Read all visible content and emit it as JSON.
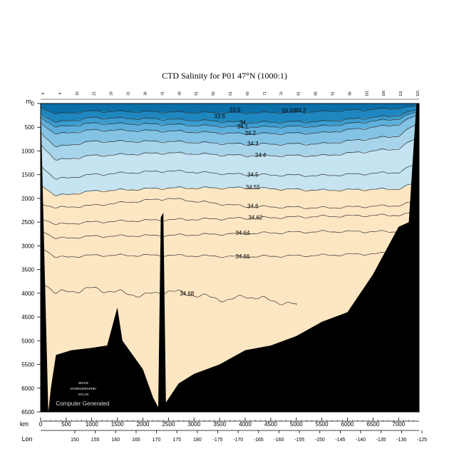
{
  "chart_data": {
    "type": "area",
    "title": "CTD Salinity for P01 47°N (1000:1)",
    "depth_axis": {
      "label": "m",
      "range": [
        0,
        6500
      ],
      "ticks": [
        0,
        500,
        1000,
        1500,
        2000,
        2500,
        3000,
        3500,
        4000,
        4500,
        5000,
        5500,
        6000,
        6500
      ]
    },
    "distance_axis": {
      "label": "km",
      "range": [
        0,
        7400
      ],
      "ticks": [
        0,
        500,
        1000,
        1500,
        2000,
        2500,
        3000,
        3500,
        4000,
        4500,
        5000,
        5500,
        6000,
        6500,
        7000
      ]
    },
    "longitude_axis": {
      "label": "Lon",
      "labels": [
        "150",
        "155",
        "160",
        "165",
        "170",
        "175",
        "180",
        "-175",
        "-170",
        "-165",
        "-160",
        "-155",
        "-150",
        "-145",
        "-140",
        "-135",
        "-130",
        "-125"
      ]
    },
    "station_labels": [
      "6",
      "9",
      "16",
      "21",
      "26",
      "31",
      "36",
      "41",
      "46",
      "51",
      "56",
      "61",
      "66",
      "71",
      "76",
      "81",
      "86",
      "91",
      "96",
      "101",
      "106",
      "111",
      "115"
    ],
    "contour_labels": [
      {
        "label": "33.5",
        "km": 3800,
        "depth": 130
      },
      {
        "label": "33.33",
        "km": 4850,
        "depth": 150
      },
      {
        "label": "33.2",
        "km": 5080,
        "depth": 140
      },
      {
        "label": "33.6",
        "km": 3500,
        "depth": 260
      },
      {
        "label": "34",
        "km": 3950,
        "depth": 400
      },
      {
        "label": "34.1",
        "km": 3950,
        "depth": 480
      },
      {
        "label": "34.2",
        "km": 4100,
        "depth": 620
      },
      {
        "label": "34.3",
        "km": 4150,
        "depth": 840
      },
      {
        "label": "34.4",
        "km": 4300,
        "depth": 1080
      },
      {
        "label": "34.5",
        "km": 4150,
        "depth": 1500
      },
      {
        "label": "34.55",
        "km": 4150,
        "depth": 1760
      },
      {
        "label": "34.6",
        "km": 4150,
        "depth": 2160
      },
      {
        "label": "34.62",
        "km": 4200,
        "depth": 2400
      },
      {
        "label": "34.64",
        "km": 3950,
        "depth": 2720
      },
      {
        "label": "34.66",
        "km": 3950,
        "depth": 3220
      },
      {
        "label": "34.68",
        "km": 2860,
        "depth": 4000
      }
    ],
    "contour_depths": [
      {
        "s": 33.6,
        "depths": [
          [
            0,
            80
          ],
          [
            300,
            220
          ],
          [
            1000,
            160
          ],
          [
            2500,
            180
          ],
          [
            4000,
            200
          ],
          [
            5500,
            170
          ],
          [
            7000,
            100
          ],
          [
            7400,
            50
          ]
        ]
      },
      {
        "s": 34.0,
        "depths": [
          [
            0,
            200
          ],
          [
            300,
            400
          ],
          [
            1000,
            300
          ],
          [
            2500,
            330
          ],
          [
            4000,
            400
          ],
          [
            5500,
            380
          ],
          [
            7000,
            250
          ],
          [
            7400,
            120
          ]
        ]
      },
      {
        "s": 34.1,
        "depths": [
          [
            0,
            280
          ],
          [
            300,
            500
          ],
          [
            1000,
            420
          ],
          [
            2500,
            440
          ],
          [
            4000,
            500
          ],
          [
            5500,
            480
          ],
          [
            7000,
            320
          ],
          [
            7400,
            160
          ]
        ]
      },
      {
        "s": 34.2,
        "depths": [
          [
            0,
            400
          ],
          [
            300,
            650
          ],
          [
            1000,
            560
          ],
          [
            2500,
            580
          ],
          [
            4000,
            640
          ],
          [
            5500,
            620
          ],
          [
            7000,
            440
          ],
          [
            7400,
            220
          ]
        ]
      },
      {
        "s": 34.3,
        "depths": [
          [
            0,
            600
          ],
          [
            300,
            920
          ],
          [
            1000,
            800
          ],
          [
            2500,
            800
          ],
          [
            4000,
            860
          ],
          [
            5500,
            850
          ],
          [
            7000,
            680
          ],
          [
            7400,
            400
          ]
        ]
      },
      {
        "s": 34.4,
        "depths": [
          [
            0,
            850
          ],
          [
            300,
            1200
          ],
          [
            1000,
            1100
          ],
          [
            2500,
            1040
          ],
          [
            4000,
            1100
          ],
          [
            5500,
            1100
          ],
          [
            7000,
            950
          ],
          [
            7400,
            700
          ]
        ]
      },
      {
        "s": 34.5,
        "depths": [
          [
            0,
            1300
          ],
          [
            300,
            1600
          ],
          [
            1000,
            1500
          ],
          [
            2500,
            1420
          ],
          [
            4000,
            1500
          ],
          [
            5500,
            1520
          ],
          [
            7000,
            1450
          ],
          [
            7400,
            1250
          ]
        ]
      },
      {
        "s": 34.55,
        "depths": [
          [
            0,
            1700
          ],
          [
            300,
            1950
          ],
          [
            1000,
            1850
          ],
          [
            2500,
            1780
          ],
          [
            4000,
            1780
          ],
          [
            5500,
            1830
          ],
          [
            7000,
            1800
          ],
          [
            7400,
            1650
          ]
        ]
      },
      {
        "s": 34.6,
        "depths": [
          [
            0,
            2100
          ],
          [
            300,
            2200
          ],
          [
            1000,
            2150
          ],
          [
            2500,
            2000
          ],
          [
            4000,
            2170
          ],
          [
            5500,
            2200
          ],
          [
            7000,
            2150
          ],
          [
            7400,
            2050
          ]
        ]
      },
      {
        "s": 34.62,
        "depths": [
          [
            0,
            2400
          ],
          [
            300,
            2550
          ],
          [
            1000,
            2500
          ],
          [
            2500,
            2450
          ],
          [
            4000,
            2420
          ],
          [
            5500,
            2380
          ],
          [
            7000,
            2350
          ],
          [
            7400,
            2300
          ]
        ]
      },
      {
        "s": 34.64,
        "depths": [
          [
            0,
            2650
          ],
          [
            300,
            2850
          ],
          [
            1000,
            2800
          ],
          [
            2500,
            2780
          ],
          [
            4000,
            2740
          ],
          [
            5500,
            2700
          ],
          [
            7000,
            2700
          ],
          [
            7400,
            2650
          ]
        ]
      },
      {
        "s": 34.66,
        "depths": [
          [
            0,
            3000
          ],
          [
            300,
            3250
          ],
          [
            1000,
            3200
          ],
          [
            2500,
            3200
          ],
          [
            4000,
            3230
          ],
          [
            5500,
            3200
          ],
          [
            7000,
            3150
          ],
          [
            7400,
            3100
          ]
        ]
      },
      {
        "s": 34.68,
        "depths": [
          [
            0,
            3700
          ],
          [
            300,
            4000
          ],
          [
            1000,
            3900
          ],
          [
            2000,
            4050
          ],
          [
            2500,
            3950
          ],
          [
            3700,
            4150
          ],
          [
            4000,
            4050
          ],
          [
            5000,
            4250
          ]
        ]
      }
    ],
    "bottom_profile": [
      [
        0,
        0
      ],
      [
        80,
        3500
      ],
      [
        150,
        6500
      ],
      [
        200,
        6000
      ],
      [
        300,
        5300
      ],
      [
        600,
        5200
      ],
      [
        1000,
        5150
      ],
      [
        1300,
        5100
      ],
      [
        1400,
        4700
      ],
      [
        1500,
        4300
      ],
      [
        1600,
        5000
      ],
      [
        1800,
        5300
      ],
      [
        2000,
        5600
      ],
      [
        2200,
        6200
      ],
      [
        2300,
        6400
      ],
      [
        2350,
        2400
      ],
      [
        2400,
        2300
      ],
      [
        2450,
        6300
      ],
      [
        2700,
        5900
      ],
      [
        3000,
        5700
      ],
      [
        3500,
        5500
      ],
      [
        4000,
        5200
      ],
      [
        4500,
        5100
      ],
      [
        5000,
        4900
      ],
      [
        5500,
        4600
      ],
      [
        6000,
        4400
      ],
      [
        6500,
        3600
      ],
      [
        6800,
        3000
      ],
      [
        7000,
        2600
      ],
      [
        7200,
        2500
      ],
      [
        7300,
        800
      ],
      [
        7350,
        0
      ],
      [
        7400,
        0
      ]
    ],
    "band_colors": [
      "#0b6fa8",
      "#1f87bf",
      "#3b9ccf",
      "#5eb0dc",
      "#84c3e4",
      "#a8d4eb",
      "#c5e3f0",
      "#fde7c3"
    ],
    "watermark": [
      "WOCE",
      "HYDROGRAPHIC",
      "ATLAS"
    ],
    "footer_note": "Computer Generated"
  }
}
